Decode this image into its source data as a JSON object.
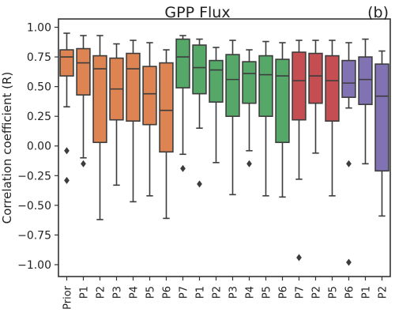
{
  "chart_data": {
    "type": "box",
    "title": "GPP Flux",
    "panel_label": "(b)",
    "ylabel": "Correlation coefficient (R)",
    "xlabel": "",
    "ylim": [
      -1.1,
      1.07
    ],
    "yticks": [
      -1.0,
      -0.75,
      -0.5,
      -0.25,
      0.0,
      0.25,
      0.5,
      0.75,
      1.0
    ],
    "ytick_labels": [
      "−1.00",
      "−0.75",
      "−0.50",
      "−0.25",
      "0.00",
      "0.25",
      "0.50",
      "0.75",
      "1.00"
    ],
    "grid": false,
    "categories": [
      "Prior",
      "P1",
      "P2",
      "P3",
      "P4",
      "P5",
      "P6",
      "P7",
      "P1",
      "P2",
      "P3",
      "P4",
      "P5",
      "P6",
      "P7",
      "P2",
      "P5",
      "P6",
      "P1",
      "P2"
    ],
    "colors": [
      "#dd8452",
      "#dd8452",
      "#dd8452",
      "#dd8452",
      "#dd8452",
      "#dd8452",
      "#dd8452",
      "#55a868",
      "#55a868",
      "#55a868",
      "#55a868",
      "#55a868",
      "#55a868",
      "#55a868",
      "#c44e52",
      "#c44e52",
      "#c44e52",
      "#8172b3",
      "#8172b3",
      "#8172b3"
    ],
    "boxes": [
      {
        "whislo": 0.33,
        "q1": 0.59,
        "med": 0.75,
        "q3": 0.81,
        "whishi": 0.95,
        "fliers": [
          -0.04,
          -0.29
        ]
      },
      {
        "whislo": -0.1,
        "q1": 0.43,
        "med": 0.7,
        "q3": 0.82,
        "whishi": 0.93,
        "fliers": [
          -0.15
        ]
      },
      {
        "whislo": -0.62,
        "q1": 0.03,
        "med": 0.65,
        "q3": 0.76,
        "whishi": 0.93,
        "fliers": []
      },
      {
        "whislo": -0.33,
        "q1": 0.22,
        "med": 0.48,
        "q3": 0.74,
        "whishi": 0.86,
        "fliers": []
      },
      {
        "whislo": -0.47,
        "q1": 0.21,
        "med": 0.65,
        "q3": 0.78,
        "whishi": 0.89,
        "fliers": []
      },
      {
        "whislo": -0.42,
        "q1": 0.18,
        "med": 0.44,
        "q3": 0.67,
        "whishi": 0.87,
        "fliers": []
      },
      {
        "whislo": -0.61,
        "q1": -0.05,
        "med": 0.3,
        "q3": 0.7,
        "whishi": 0.81,
        "fliers": []
      },
      {
        "whislo": -0.07,
        "q1": 0.49,
        "med": 0.75,
        "q3": 0.9,
        "whishi": 0.93,
        "fliers": [
          -0.19
        ]
      },
      {
        "whislo": 0.15,
        "q1": 0.44,
        "med": 0.66,
        "q3": 0.85,
        "whishi": 0.9,
        "fliers": [
          -0.32
        ]
      },
      {
        "whislo": -0.14,
        "q1": 0.37,
        "med": 0.64,
        "q3": 0.72,
        "whishi": 0.83,
        "fliers": []
      },
      {
        "whislo": -0.41,
        "q1": 0.25,
        "med": 0.56,
        "q3": 0.77,
        "whishi": 0.89,
        "fliers": []
      },
      {
        "whislo": -0.04,
        "q1": 0.36,
        "med": 0.61,
        "q3": 0.71,
        "whishi": 0.81,
        "fliers": [
          -0.15
        ]
      },
      {
        "whislo": -0.42,
        "q1": 0.25,
        "med": 0.6,
        "q3": 0.76,
        "whishi": 0.88,
        "fliers": []
      },
      {
        "whislo": -0.43,
        "q1": 0.03,
        "med": 0.59,
        "q3": 0.73,
        "whishi": 0.87,
        "fliers": []
      },
      {
        "whislo": -0.28,
        "q1": 0.22,
        "med": 0.55,
        "q3": 0.79,
        "whishi": 0.89,
        "fliers": [
          -0.94
        ]
      },
      {
        "whislo": -0.06,
        "q1": 0.36,
        "med": 0.59,
        "q3": 0.78,
        "whishi": 0.89,
        "fliers": []
      },
      {
        "whislo": -0.42,
        "q1": 0.21,
        "med": 0.55,
        "q3": 0.76,
        "whishi": 0.89,
        "fliers": []
      },
      {
        "whislo": 0.32,
        "q1": 0.41,
        "med": 0.53,
        "q3": 0.72,
        "whishi": 0.87,
        "fliers": [
          -0.15,
          -0.98
        ]
      },
      {
        "whislo": -0.15,
        "q1": 0.35,
        "med": 0.56,
        "q3": 0.75,
        "whishi": 0.9,
        "fliers": []
      },
      {
        "whislo": -0.59,
        "q1": -0.21,
        "med": 0.42,
        "q3": 0.69,
        "whishi": 0.8,
        "fliers": []
      }
    ]
  }
}
